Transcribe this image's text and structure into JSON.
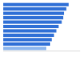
{
  "chart_data": {
    "type": "bar",
    "orientation": "horizontal",
    "categories": [
      null,
      null,
      null,
      null,
      null,
      null,
      null,
      null,
      null,
      null,
      null
    ],
    "values": [
      85,
      82,
      79,
      78,
      76,
      72,
      69,
      66,
      63,
      61,
      56
    ],
    "colors": [
      "#2f6fd6",
      "#2f6fd6",
      "#2f6fd6",
      "#2f6fd6",
      "#2f6fd6",
      "#2f6fd6",
      "#2f6fd6",
      "#2f6fd6",
      "#2f6fd6",
      "#2f6fd6",
      "#8db6ee"
    ],
    "xlim": [
      0,
      100
    ],
    "xticks": [],
    "grid": false,
    "tick_labels": false
  }
}
